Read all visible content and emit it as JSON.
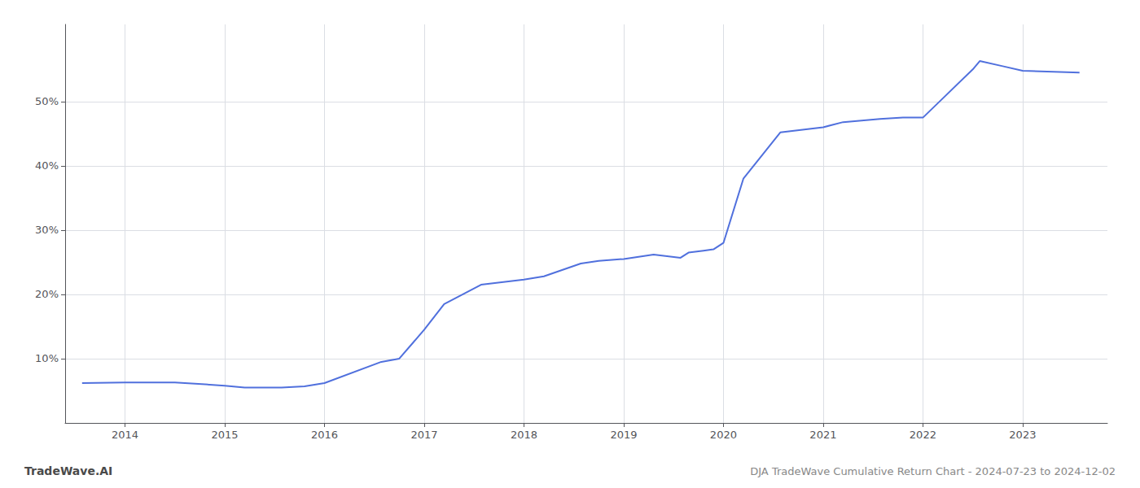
{
  "chart_data": {
    "type": "line",
    "x": [
      2013.57,
      2014.0,
      2014.5,
      2015.0,
      2015.2,
      2015.57,
      2015.8,
      2016.0,
      2016.57,
      2016.75,
      2017.0,
      2017.2,
      2017.57,
      2018.0,
      2018.2,
      2018.57,
      2018.75,
      2019.0,
      2019.3,
      2019.57,
      2019.65,
      2019.8,
      2019.9,
      2020.0,
      2020.2,
      2020.57,
      2021.0,
      2021.2,
      2021.57,
      2021.8,
      2022.0,
      2022.2,
      2022.5,
      2022.57,
      2022.8,
      2023.0,
      2023.57
    ],
    "values": [
      6.2,
      6.3,
      6.3,
      5.8,
      5.5,
      5.5,
      5.7,
      6.2,
      9.5,
      10.0,
      14.5,
      18.5,
      21.5,
      22.3,
      22.8,
      24.8,
      25.2,
      25.5,
      26.2,
      25.7,
      26.5,
      26.8,
      27.0,
      28.0,
      38.0,
      45.2,
      46.0,
      46.8,
      47.3,
      47.5,
      47.5,
      50.5,
      55.0,
      56.3,
      55.5,
      54.8,
      54.5
    ],
    "xlim": [
      2013.4,
      2023.85
    ],
    "xticks": [
      2014,
      2015,
      2016,
      2017,
      2018,
      2019,
      2020,
      2021,
      2022,
      2023
    ],
    "ylim": [
      0,
      62
    ],
    "yticks": [
      {
        "value": 10,
        "label": "10%"
      },
      {
        "value": 20,
        "label": "20%"
      },
      {
        "value": 30,
        "label": "30%"
      },
      {
        "value": 40,
        "label": "40%"
      },
      {
        "value": 50,
        "label": "50%"
      }
    ],
    "grid": true,
    "annotations": [
      "TradeWave.AI",
      "DJA TradeWave Cumulative Return Chart - 2024-07-23 to 2024-12-02"
    ]
  }
}
